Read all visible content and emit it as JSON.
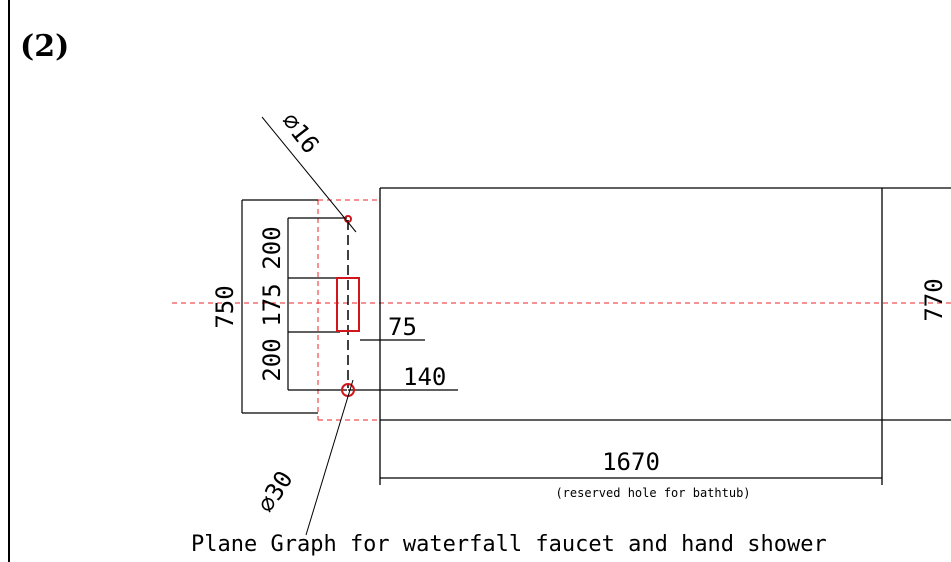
{
  "heading": "(2)",
  "caption": "Plane Graph for waterfall faucet and hand shower",
  "sub_caption": "(reserved hole for bathtub)",
  "dimensions": {
    "overall_depth": "750",
    "segment_top": "200",
    "segment_middle": "175",
    "segment_bottom": "200",
    "offset_rect": "75",
    "offset_hole": "140",
    "tub_length": "1670",
    "tub_width": "770"
  },
  "holes": {
    "small_diameter": "⌀16",
    "large_diameter": "⌀30"
  },
  "colors": {
    "line": "#000000",
    "centerline": "#e8262a",
    "hole": "#d0161a"
  }
}
